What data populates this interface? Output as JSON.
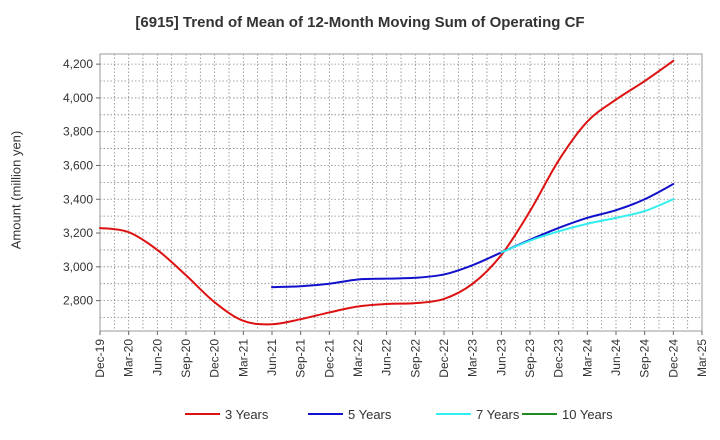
{
  "chart_data": {
    "type": "line",
    "title": "[6915]  Trend of Mean of 12-Month Moving Sum of Operating CF",
    "xlabel": "",
    "ylabel": "Amount (million yen)",
    "ylim": [
      2620,
      4260
    ],
    "yticks": [
      2800,
      3000,
      3200,
      3400,
      3600,
      3800,
      4000,
      4200
    ],
    "ytick_labels": [
      "2,800",
      "3,000",
      "3,200",
      "3,400",
      "3,600",
      "3,800",
      "4,000",
      "4,200"
    ],
    "x_tick_labels": [
      "Dec-19",
      "Mar-20",
      "Jun-20",
      "Sep-20",
      "Dec-20",
      "Mar-21",
      "Jun-21",
      "Sep-21",
      "Dec-21",
      "Mar-22",
      "Jun-22",
      "Sep-22",
      "Dec-22",
      "Mar-23",
      "Jun-23",
      "Sep-23",
      "Dec-23",
      "Mar-24",
      "Jun-24",
      "Sep-24",
      "Dec-24",
      "Mar-25"
    ],
    "grid": true,
    "legend_position": "bottom",
    "series": [
      {
        "name": "3 Years",
        "color": "#dd1111",
        "points": [
          [
            0,
            3230
          ],
          [
            1,
            3205
          ],
          [
            2,
            3100
          ],
          [
            3,
            2950
          ],
          [
            4,
            2790
          ],
          [
            5,
            2680
          ],
          [
            6,
            2660
          ],
          [
            7,
            2690
          ],
          [
            8,
            2730
          ],
          [
            9,
            2765
          ],
          [
            10,
            2780
          ],
          [
            11,
            2785
          ],
          [
            12,
            2810
          ],
          [
            13,
            2900
          ],
          [
            14,
            3070
          ],
          [
            15,
            3330
          ],
          [
            16,
            3630
          ],
          [
            17,
            3860
          ],
          [
            18,
            3990
          ],
          [
            19,
            4100
          ],
          [
            20,
            4220
          ]
        ]
      },
      {
        "name": "5 Years",
        "color": "#1111cc",
        "points": [
          [
            6,
            2880
          ],
          [
            7,
            2885
          ],
          [
            8,
            2900
          ],
          [
            9,
            2925
          ],
          [
            10,
            2930
          ],
          [
            11,
            2935
          ],
          [
            12,
            2955
          ],
          [
            13,
            3010
          ],
          [
            14,
            3085
          ],
          [
            15,
            3160
          ],
          [
            16,
            3230
          ],
          [
            17,
            3290
          ],
          [
            18,
            3335
          ],
          [
            19,
            3400
          ],
          [
            20,
            3490
          ]
        ]
      },
      {
        "name": "7 Years",
        "color": "#33eeee",
        "points": [
          [
            14,
            3085
          ],
          [
            15,
            3155
          ],
          [
            16,
            3210
          ],
          [
            17,
            3255
          ],
          [
            18,
            3290
          ],
          [
            19,
            3330
          ],
          [
            20,
            3400
          ]
        ]
      },
      {
        "name": "10 Years",
        "color": "#228822",
        "points": []
      }
    ]
  }
}
